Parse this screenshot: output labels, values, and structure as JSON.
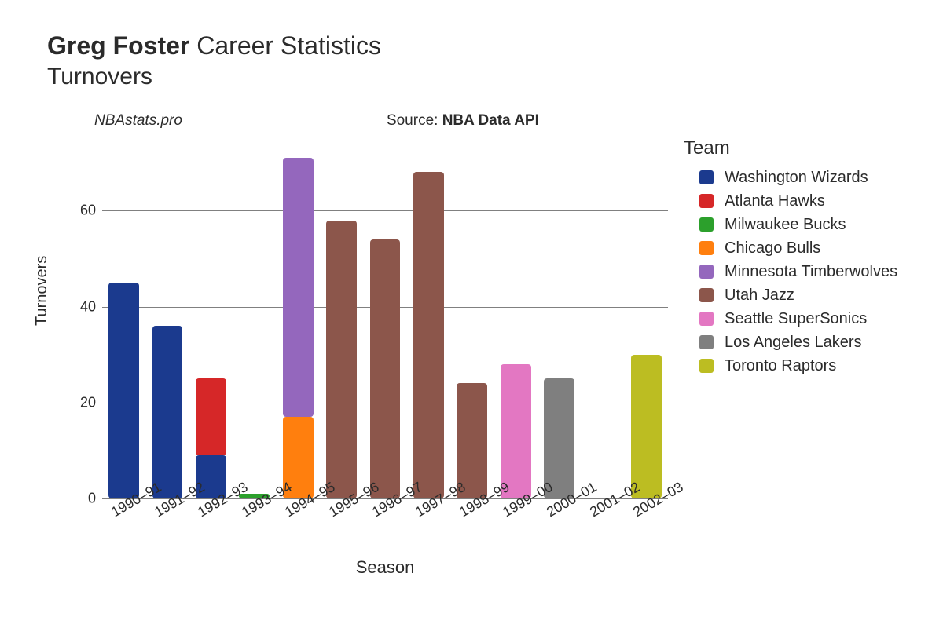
{
  "title": {
    "bold": "Greg Foster",
    "rest": "Career Statistics",
    "subtitle": "Turnovers"
  },
  "meta": {
    "site": "NBAstats.pro",
    "source_prefix": "Source: ",
    "source_bold": "NBA Data API"
  },
  "legend_title": "Team",
  "teams": [
    {
      "name": "Washington Wizards",
      "color": "#1b3a8e"
    },
    {
      "name": "Atlanta Hawks",
      "color": "#d62728"
    },
    {
      "name": "Milwaukee Bucks",
      "color": "#2ca02c"
    },
    {
      "name": "Chicago Bulls",
      "color": "#ff7f0e"
    },
    {
      "name": "Minnesota Timberwolves",
      "color": "#9467bd"
    },
    {
      "name": "Utah Jazz",
      "color": "#8c564b"
    },
    {
      "name": "Seattle SuperSonics",
      "color": "#e377c2"
    },
    {
      "name": "Los Angeles Lakers",
      "color": "#7f7f7f"
    },
    {
      "name": "Toronto Raptors",
      "color": "#bcbd22"
    }
  ],
  "chart": {
    "type": "stacked-bar",
    "y_label": "Turnovers",
    "x_label": "Season",
    "ylim": [
      0,
      72
    ],
    "y_ticks": [
      0,
      20,
      40,
      60
    ],
    "grid_color": "#808080",
    "background_color": "#ffffff",
    "bar_width_ratio": 0.7,
    "categories": [
      "1990–91",
      "1991–92",
      "1992–93",
      "1993–94",
      "1994–95",
      "1995–96",
      "1996–97",
      "1997–98",
      "1998–99",
      "1999–00",
      "2000–01",
      "2001–02",
      "2002–03"
    ],
    "stacks": [
      [
        {
          "team": 0,
          "value": 45
        }
      ],
      [
        {
          "team": 0,
          "value": 36
        }
      ],
      [
        {
          "team": 0,
          "value": 9
        },
        {
          "team": 1,
          "value": 16
        }
      ],
      [
        {
          "team": 2,
          "value": 1
        }
      ],
      [
        {
          "team": 3,
          "value": 17
        },
        {
          "team": 4,
          "value": 54
        }
      ],
      [
        {
          "team": 5,
          "value": 58
        }
      ],
      [
        {
          "team": 5,
          "value": 54
        }
      ],
      [
        {
          "team": 5,
          "value": 68
        }
      ],
      [
        {
          "team": 5,
          "value": 24
        }
      ],
      [
        {
          "team": 6,
          "value": 28
        }
      ],
      [
        {
          "team": 7,
          "value": 25
        }
      ],
      [
        {
          "team": 2,
          "value": 0
        }
      ],
      [
        {
          "team": 8,
          "value": 30
        }
      ]
    ]
  },
  "typography": {
    "title_fontsize": 32,
    "subtitle_fontsize": 30,
    "legend_title_fontsize": 24,
    "legend_item_fontsize": 20,
    "axis_label_fontsize": 20,
    "tick_fontsize": 18,
    "x_tick_rotation_deg": -30
  }
}
